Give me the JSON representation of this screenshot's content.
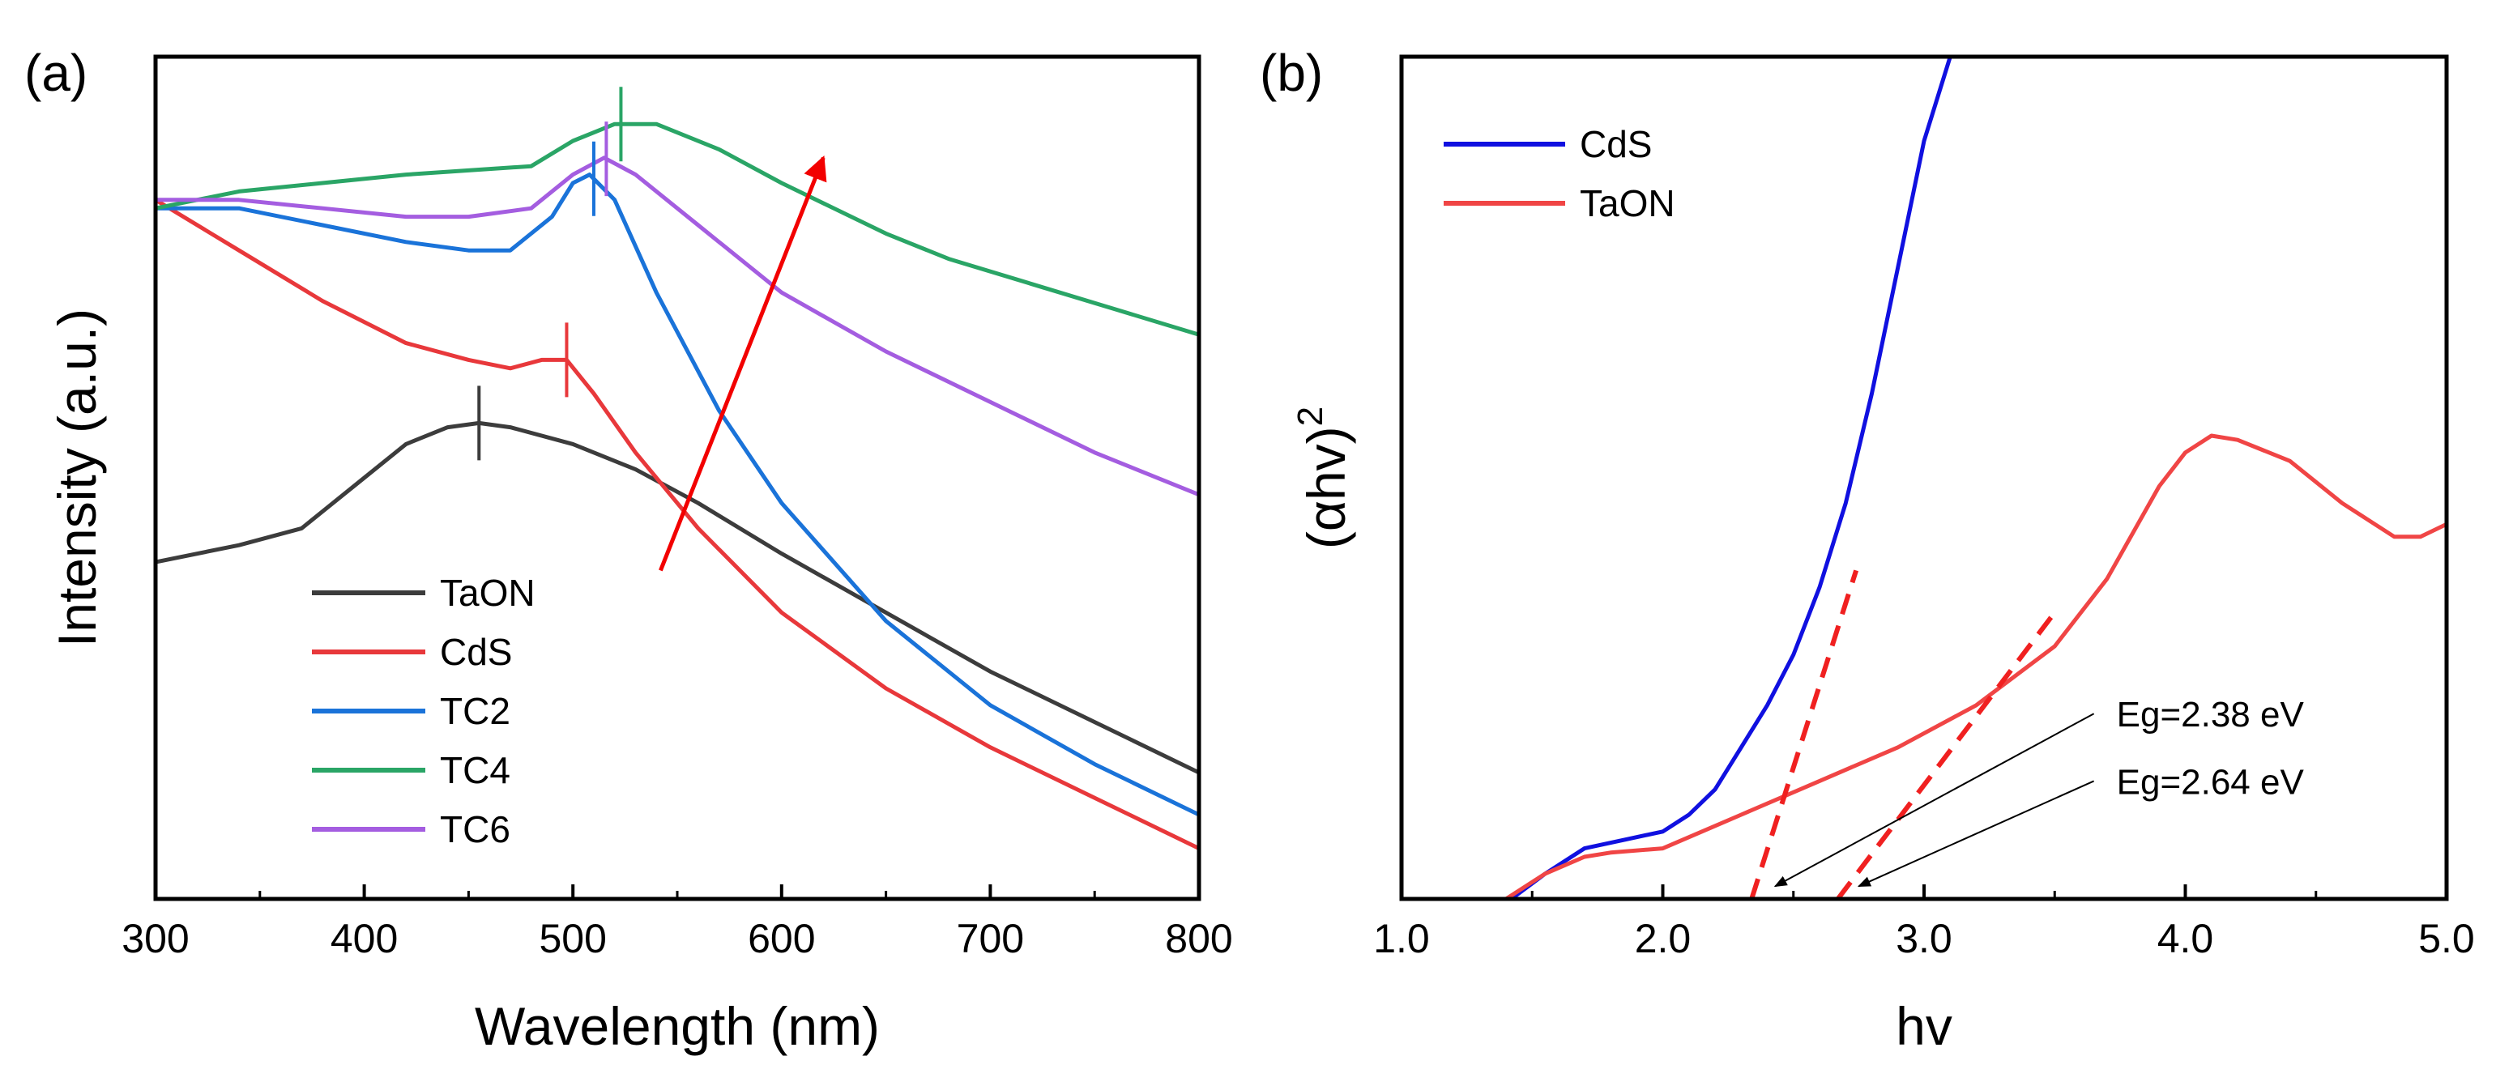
{
  "chart_data": [
    {
      "panel_label": "(a)",
      "type": "line",
      "xlabel": "Wavelength (nm)",
      "ylabel": "Intensity (a.u.)",
      "xlim": [
        300,
        800
      ],
      "ylim": [
        0,
        100
      ],
      "xticks": [
        "300",
        "400",
        "500",
        "600",
        "700",
        "800"
      ],
      "yticks_shown": false,
      "legend_position": "lower-left",
      "series": [
        {
          "name": "TaON",
          "color": "#3c3c3c",
          "x": [
            300,
            340,
            370,
            400,
            420,
            440,
            455,
            470,
            500,
            530,
            560,
            600,
            650,
            700,
            750,
            800
          ],
          "y": [
            40,
            42,
            44,
            50,
            54,
            56,
            56.5,
            56,
            54,
            51,
            47,
            41,
            34,
            27,
            21,
            15
          ],
          "peak_marker": 455
        },
        {
          "name": "CdS",
          "color": "#e8383b",
          "x": [
            300,
            340,
            380,
            420,
            450,
            470,
            485,
            497,
            510,
            530,
            560,
            600,
            650,
            700,
            750,
            800
          ],
          "y": [
            83,
            77,
            71,
            66,
            64,
            63,
            64,
            64,
            60,
            53,
            44,
            34,
            25,
            18,
            12,
            6
          ],
          "peak_marker": 497
        },
        {
          "name": "TC2",
          "color": "#1a73d9",
          "x": [
            300,
            340,
            380,
            420,
            450,
            470,
            490,
            500,
            508,
            520,
            540,
            570,
            600,
            650,
            700,
            750,
            800
          ],
          "y": [
            82,
            82,
            80,
            78,
            77,
            77,
            81,
            85,
            86,
            83,
            72,
            58,
            47,
            33,
            23,
            16,
            10
          ],
          "peak_marker": 510
        },
        {
          "name": "TC4",
          "color": "#2aa566",
          "x": [
            300,
            340,
            380,
            420,
            450,
            480,
            500,
            520,
            540,
            570,
            600,
            650,
            680,
            720,
            760,
            800
          ],
          "y": [
            82,
            84,
            85,
            86,
            86.5,
            87,
            90,
            92,
            92,
            89,
            85,
            79,
            76,
            73,
            70,
            67
          ],
          "peak_marker": 523
        },
        {
          "name": "TC6",
          "color": "#a45de0",
          "x": [
            300,
            340,
            380,
            420,
            450,
            480,
            500,
            515,
            530,
            560,
            600,
            650,
            700,
            750,
            800
          ],
          "y": [
            83,
            83,
            82,
            81,
            81,
            82,
            86,
            88,
            86,
            80,
            72,
            65,
            59,
            53,
            48
          ],
          "peak_marker": 516
        }
      ],
      "annotations": [
        {
          "type": "arrow",
          "color": "#f20000",
          "from": [
            542,
            39
          ],
          "to": [
            620,
            88
          ]
        }
      ]
    },
    {
      "panel_label": "(b)",
      "type": "line",
      "xlabel": "hv",
      "ylabel": "(αhv)",
      "ylabel_superscript": "2",
      "xlim": [
        1.0,
        5.0
      ],
      "ylim": [
        0,
        100
      ],
      "xticks": [
        "1.0",
        "2.0",
        "3.0",
        "4.0",
        "5.0"
      ],
      "yticks_shown": false,
      "legend_position": "top-left",
      "series": [
        {
          "name": "CdS",
          "color": "#1010e0",
          "x": [
            1.42,
            1.55,
            1.7,
            1.85,
            2.0,
            2.1,
            2.2,
            2.3,
            2.4,
            2.5,
            2.6,
            2.7,
            2.8,
            2.9,
            3.0,
            3.1
          ],
          "y": [
            0,
            3,
            6,
            7,
            8,
            10,
            13,
            18,
            23,
            29,
            37,
            47,
            60,
            75,
            90,
            100
          ]
        },
        {
          "name": "TaON",
          "color": "#f04545",
          "x": [
            1.4,
            1.55,
            1.7,
            1.8,
            2.0,
            2.3,
            2.6,
            2.9,
            3.2,
            3.5,
            3.7,
            3.9,
            4.0,
            4.1,
            4.2,
            4.4,
            4.6,
            4.8,
            4.9,
            5.0
          ],
          "y": [
            0,
            3,
            5,
            5.5,
            6,
            10,
            14,
            18,
            23,
            30,
            38,
            49,
            53,
            55,
            54.5,
            52,
            47,
            43,
            43,
            44.5
          ]
        }
      ],
      "tangent_lines": [
        {
          "color": "#f02020",
          "style": "dashed",
          "x": [
            2.34,
            2.74
          ],
          "y": [
            0,
            39
          ]
        },
        {
          "color": "#f02020",
          "style": "dashed",
          "x": [
            2.67,
            3.5
          ],
          "y": [
            0,
            34
          ]
        }
      ],
      "annotations": [
        {
          "type": "arrow",
          "label": "Eg=2.38 eV",
          "color": "#000000",
          "from": [
            3.65,
            22
          ],
          "to": [
            2.43,
            1.5
          ]
        },
        {
          "type": "arrow",
          "label": "Eg=2.64 eV",
          "color": "#000000",
          "from": [
            3.65,
            14
          ],
          "to": [
            2.75,
            1.5
          ]
        }
      ]
    }
  ]
}
